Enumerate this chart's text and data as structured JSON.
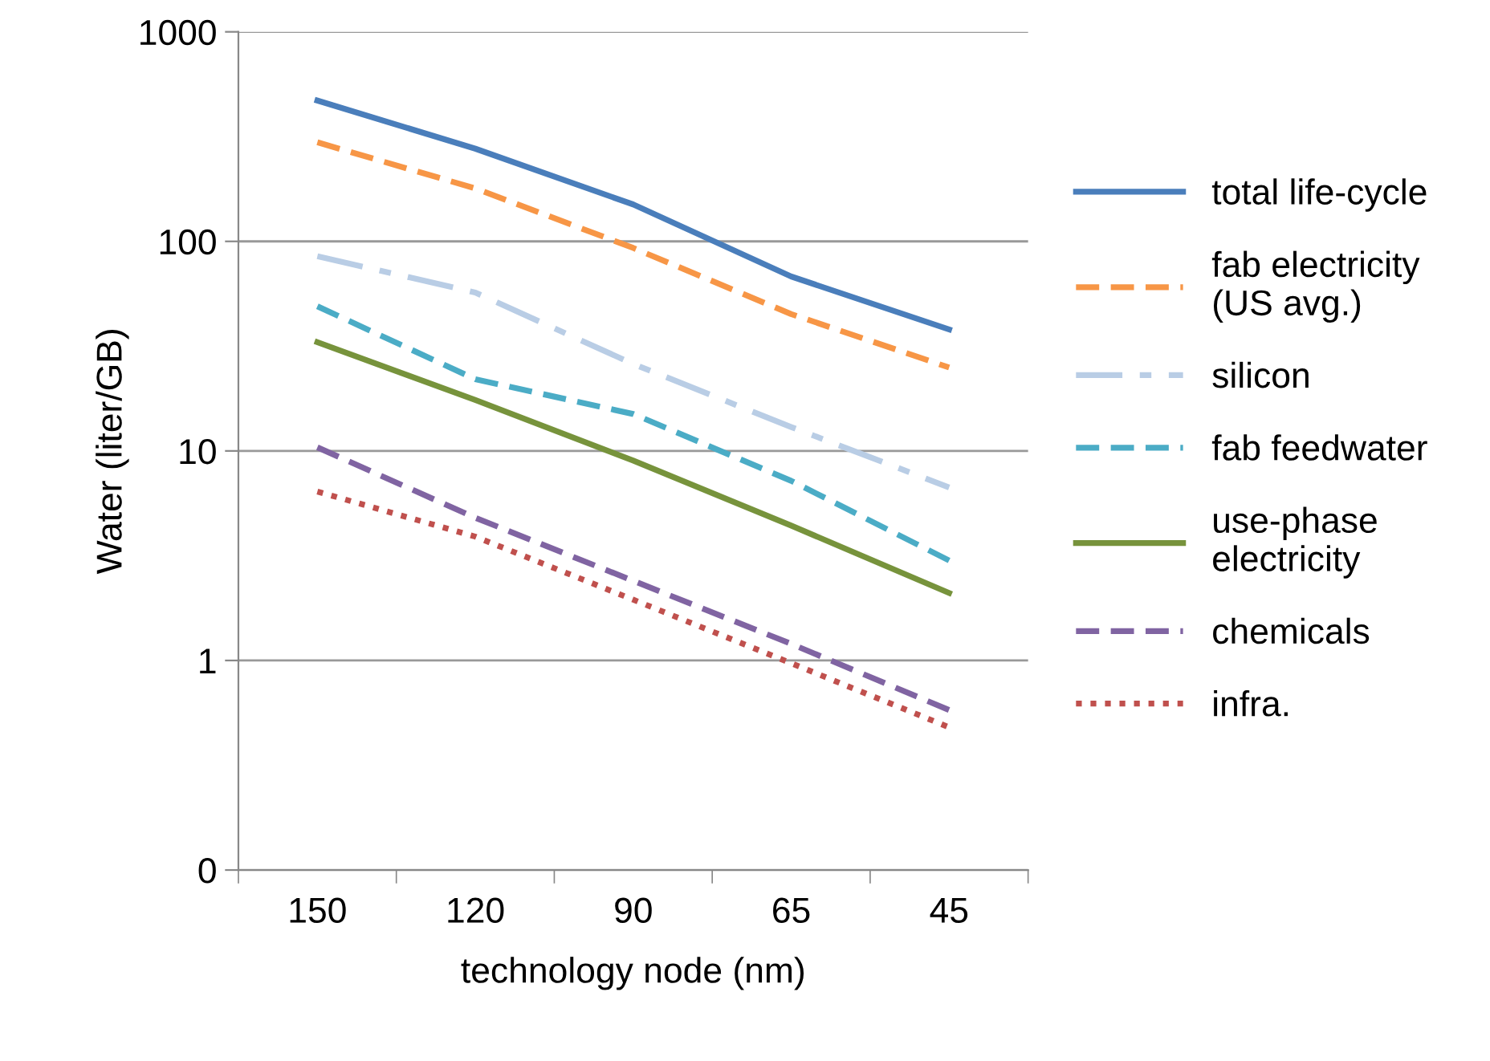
{
  "chart_data": {
    "type": "line",
    "xlabel": "technology node (nm)",
    "ylabel": "Water (liter/GB)",
    "categories": [
      "150",
      "120",
      "90",
      "65",
      "45"
    ],
    "log": "y",
    "ylim": [
      0.1,
      1000
    ],
    "yticks": [
      {
        "value": 0.1,
        "label": "0"
      },
      1,
      10,
      100,
      1000
    ],
    "grid": "y",
    "legend": "right",
    "series": [
      {
        "name": "total life-cycle",
        "color": "#4a7ebb",
        "line_style": "solid",
        "values": [
          470,
          277,
          150,
          68,
          38
        ]
      },
      {
        "name": "fab electricity\n(US avg.)",
        "color": "#f79646",
        "line_style": "dashed",
        "values": [
          297,
          179,
          93,
          45,
          25
        ]
      },
      {
        "name": "silicon",
        "color": "#b9cde5",
        "line_style": "dashdot",
        "values": [
          85,
          57,
          26,
          13,
          6.7
        ]
      },
      {
        "name": "fab feedwater",
        "color": "#4bacc6",
        "line_style": "dashed",
        "values": [
          49,
          22,
          15,
          7.2,
          3.0
        ]
      },
      {
        "name": "use-phase\nelectricity",
        "color": "#77933c",
        "line_style": "solid",
        "values": [
          33,
          17.5,
          9,
          4.4,
          2.1
        ]
      },
      {
        "name": "chemicals",
        "color": "#8064a2",
        "line_style": "dashed",
        "values": [
          10.4,
          4.8,
          2.4,
          1.2,
          0.58
        ]
      },
      {
        "name": "infra.",
        "color": "#c0504d",
        "line_style": "dotted",
        "values": [
          6.4,
          3.9,
          1.95,
          0.97,
          0.48
        ]
      }
    ]
  }
}
